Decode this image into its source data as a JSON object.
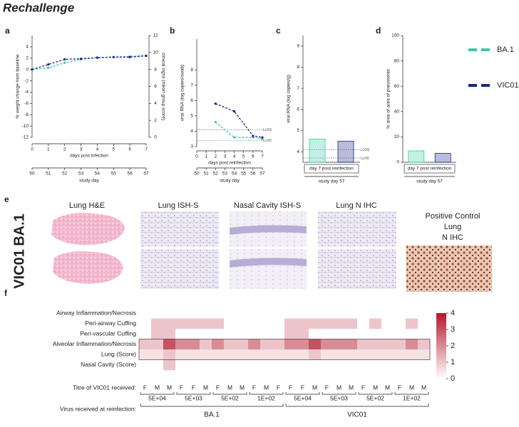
{
  "title": "Rechallenge",
  "chart_data": [
    {
      "panel": "a",
      "type": "line",
      "xlabel": "days post infection",
      "ylabel": "% weight change from baseline",
      "y2label": "clinical signs (mean group score)",
      "x2label": "study day",
      "x": [
        0,
        1,
        2,
        3,
        4,
        5,
        6,
        7
      ],
      "xlim": [
        0,
        7
      ],
      "xticks": [
        0,
        1,
        2,
        3,
        4,
        5,
        6,
        7
      ],
      "x2lim": [
        50,
        57
      ],
      "x2ticks": [
        50,
        51,
        52,
        53,
        54,
        55,
        56,
        57
      ],
      "ylim": [
        -12,
        6
      ],
      "yticks": [
        -12,
        -10,
        -8,
        -6,
        -4,
        -2,
        0,
        2,
        4
      ],
      "y2lim": [
        0,
        12
      ],
      "y2ticks": [
        0,
        2,
        4,
        6,
        8,
        10,
        12
      ],
      "series": [
        {
          "name": "BA.1",
          "color": "#38c9a7",
          "values": [
            0,
            0.3,
            1.2,
            1.8,
            2.1,
            2.2,
            2.3,
            2.5
          ]
        },
        {
          "name": "VIC01",
          "color": "#1b2585",
          "values": [
            0,
            0.9,
            1.8,
            1.9,
            2.1,
            2.2,
            2.2,
            2.4
          ]
        }
      ]
    },
    {
      "panel": "b",
      "type": "line",
      "xlabel": "days post reinfection",
      "ylabel": "viral RNA (log copies/swab)",
      "x2label": "study day",
      "x": [
        2,
        4,
        6,
        7
      ],
      "xlim": [
        0,
        7
      ],
      "xticks": [
        0,
        1,
        2,
        3,
        4,
        5,
        6,
        7
      ],
      "x2lim": [
        50,
        57
      ],
      "x2ticks": [
        50,
        51,
        52,
        53,
        54,
        55,
        56,
        57
      ],
      "ylim": [
        3,
        10
      ],
      "yticks": [
        3,
        4,
        5,
        6,
        7,
        8
      ],
      "annotations": [
        {
          "text": "LLOQ",
          "y": 4.1
        },
        {
          "text": "LLOD",
          "y": 3.4
        }
      ],
      "series": [
        {
          "color": "#38c9a7",
          "values": [
            4.6,
            3.6,
            3.6,
            3.5
          ]
        },
        {
          "color": "#1b2585",
          "values": [
            5.8,
            5.3,
            3.7,
            3.6
          ]
        }
      ]
    },
    {
      "panel": "c",
      "type": "bar",
      "xlabel": "day 7 post reinfection",
      "x2label": "study day 57",
      "ylabel": "viral RNA (log copies/g)",
      "ylim": [
        3.5,
        9.5
      ],
      "yticks": [
        4,
        5,
        6,
        7,
        8,
        9
      ],
      "annotations": [
        {
          "text": "LLOQ",
          "y": 4.1
        },
        {
          "text": "LLOD",
          "y": 3.7
        }
      ],
      "values": [
        4.6,
        4.5
      ],
      "colors": [
        "#38c9a7",
        "#1b2585"
      ]
    },
    {
      "panel": "d",
      "type": "bar",
      "xlabel": "day 7 post reinfection",
      "x2label": "study day 57",
      "ylabel": "% area of area of pneumonia",
      "ylim": [
        0,
        100
      ],
      "yticks": [
        0,
        20,
        40,
        60,
        80,
        100
      ],
      "values": [
        9,
        7
      ],
      "colors": [
        "#38c9a7",
        "#1b2585"
      ]
    },
    {
      "panel": "f",
      "type": "heatmap",
      "rows": [
        "Airway Inflammation/Necrosis",
        "Peri-airway Cuffing",
        "Peri-vascular Cuffing",
        "Alveolar Inflammation/Necrosis",
        "Lung (Score)",
        "Nasal Cavity (Score)"
      ],
      "sex_label": "Titre of VIC01 received:",
      "sex": [
        "F",
        "M",
        "M",
        "F",
        "F",
        "M",
        "F",
        "M",
        "M",
        "F",
        "M",
        "F",
        "F",
        "F",
        "M",
        "F",
        "M",
        "M",
        "F",
        "M",
        "M",
        "F",
        "M",
        "M"
      ],
      "titre_label": "Virus received at reinfection:",
      "titres": [
        "5E+04",
        "5E+03",
        "5E+02",
        "1E+02",
        "5E+04",
        "5E+03",
        "5E+02",
        "1E+02"
      ],
      "viruses": [
        "BA.1",
        "VIC01"
      ],
      "values": [
        [
          0,
          0,
          0,
          0,
          0,
          0,
          0,
          0,
          0,
          0,
          0,
          0,
          0,
          0,
          0,
          0,
          0,
          0,
          0,
          0,
          0,
          0,
          0,
          0
        ],
        [
          0,
          1,
          1,
          1,
          1,
          1,
          1,
          0,
          0,
          0,
          0,
          0,
          1,
          1,
          1,
          1,
          1,
          1,
          0,
          1,
          0,
          0,
          1,
          0
        ],
        [
          0,
          1,
          1,
          0,
          0,
          0,
          0,
          0,
          0,
          0,
          0,
          0,
          1,
          1,
          0,
          0,
          0,
          0,
          0,
          0,
          0,
          0,
          0,
          0
        ],
        [
          1,
          1,
          3,
          2,
          2,
          1,
          2,
          1,
          1,
          2,
          1,
          1,
          2,
          2,
          3,
          2,
          2,
          2,
          1,
          1,
          1,
          1,
          2,
          1
        ],
        [
          0.5,
          0.5,
          1,
          0.5,
          0.5,
          0.5,
          0.5,
          0.5,
          0.5,
          0.5,
          0.5,
          0.5,
          0.5,
          0.5,
          1,
          0.5,
          0.5,
          0.5,
          0.5,
          0.5,
          0.5,
          0.5,
          0.5,
          0.5
        ],
        [
          0,
          0,
          1,
          0,
          0,
          0,
          0,
          0,
          0,
          0,
          0,
          0,
          0,
          0,
          0,
          0,
          0,
          0,
          0,
          0,
          0,
          0,
          0,
          0
        ]
      ],
      "zlim": [
        0,
        4
      ],
      "zticks": [
        0,
        1,
        2,
        3,
        4
      ],
      "colorscale": [
        "#ffffff",
        "#b2182b"
      ]
    }
  ],
  "histology": {
    "panel": "e",
    "rows": [
      "BA.1",
      "VIC01"
    ],
    "row_colors": [
      "#38c9a7",
      "#1b2585"
    ],
    "columns": [
      "Lung H&E",
      "Lung ISH-S",
      "Nasal Cavity ISH-S",
      "Lung N IHC"
    ],
    "control": [
      "Positive Control",
      "Lung",
      "N IHC"
    ]
  }
}
